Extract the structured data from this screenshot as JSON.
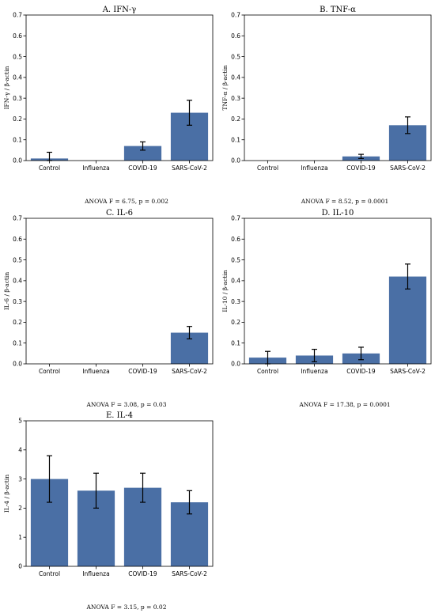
{
  "chart_data": [
    {
      "type": "bar",
      "title": "A. IFN-γ",
      "ylabel": "IFN-γ / β-actin",
      "xlabel": "",
      "categories": [
        "Control",
        "Influenza",
        "COVID-19",
        "SARS-CoV-2"
      ],
      "values": [
        0.01,
        0.0,
        0.07,
        0.23
      ],
      "errors": [
        0.03,
        0.0,
        0.02,
        0.06
      ],
      "ylim": [
        0,
        0.7
      ],
      "yticks": [
        "0.0",
        "0.1",
        "0.2",
        "0.3",
        "0.4",
        "0.5",
        "0.6",
        "0.7"
      ],
      "annotation": "ANOVA F = 6.75, p = 0.002",
      "bar_color": "#4a6fa5",
      "grid": false
    },
    {
      "type": "bar",
      "title": "B. TNF-α",
      "ylabel": "TNF-α / β-actin",
      "xlabel": "",
      "categories": [
        "Control",
        "Influenza",
        "COVID-19",
        "SARS-CoV-2"
      ],
      "values": [
        0.0,
        0.0,
        0.02,
        0.17
      ],
      "errors": [
        0.0,
        0.0,
        0.01,
        0.04
      ],
      "ylim": [
        0,
        0.7
      ],
      "yticks": [
        "0.0",
        "0.1",
        "0.2",
        "0.3",
        "0.4",
        "0.5",
        "0.6",
        "0.7"
      ],
      "annotation": "ANOVA F = 8.52, p = 0.0001",
      "bar_color": "#4a6fa5",
      "grid": false
    },
    {
      "type": "bar",
      "title": "C. IL-6",
      "ylabel": "IL-6 / β-actin",
      "xlabel": "",
      "categories": [
        "Control",
        "Influenza",
        "COVID-19",
        "SARS-CoV-2"
      ],
      "values": [
        0.0,
        0.0,
        0.0,
        0.15
      ],
      "errors": [
        0.0,
        0.0,
        0.0,
        0.03
      ],
      "ylim": [
        0,
        0.7
      ],
      "yticks": [
        "0.0",
        "0.1",
        "0.2",
        "0.3",
        "0.4",
        "0.5",
        "0.6",
        "0.7"
      ],
      "annotation": "ANOVA F = 3.08, p = 0.03",
      "bar_color": "#4a6fa5",
      "grid": false
    },
    {
      "type": "bar",
      "title": "D. IL-10",
      "ylabel": "IL-10 / β-actin",
      "xlabel": "",
      "categories": [
        "Control",
        "Influenza",
        "COVID-19",
        "SARS-CoV-2"
      ],
      "values": [
        0.03,
        0.04,
        0.05,
        0.42
      ],
      "errors": [
        0.03,
        0.03,
        0.03,
        0.06
      ],
      "ylim": [
        0,
        0.7
      ],
      "yticks": [
        "0.0",
        "0.1",
        "0.2",
        "0.3",
        "0.4",
        "0.5",
        "0.6",
        "0.7"
      ],
      "annotation": "ANOVA F = 17.38, p = 0.0001",
      "bar_color": "#4a6fa5",
      "grid": false
    },
    {
      "type": "bar",
      "title": "E. IL-4",
      "ylabel": "IL-4 / β-actin",
      "xlabel": "",
      "categories": [
        "Control",
        "Influenza",
        "COVID-19",
        "SARS-CoV-2"
      ],
      "values": [
        3.0,
        2.6,
        2.7,
        2.2
      ],
      "errors": [
        0.8,
        0.6,
        0.5,
        0.4
      ],
      "ylim": [
        0,
        5
      ],
      "yticks": [
        "0",
        "1",
        "2",
        "3",
        "4",
        "5"
      ],
      "annotation": "ANOVA F = 3.15, p = 0.02",
      "bar_color": "#4a6fa5",
      "grid": false
    }
  ]
}
